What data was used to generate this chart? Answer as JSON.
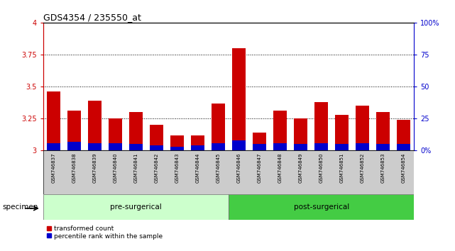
{
  "title": "GDS4354 / 235550_at",
  "samples": [
    "GSM746837",
    "GSM746838",
    "GSM746839",
    "GSM746840",
    "GSM746841",
    "GSM746842",
    "GSM746843",
    "GSM746844",
    "GSM746845",
    "GSM746846",
    "GSM746847",
    "GSM746848",
    "GSM746849",
    "GSM746850",
    "GSM746851",
    "GSM746852",
    "GSM746853",
    "GSM746854"
  ],
  "transformed_count": [
    3.46,
    3.31,
    3.39,
    3.25,
    3.3,
    3.2,
    3.12,
    3.12,
    3.37,
    3.8,
    3.14,
    3.31,
    3.25,
    3.38,
    3.28,
    3.35,
    3.3,
    3.24
  ],
  "percentile_rank": [
    0.06,
    0.07,
    0.06,
    0.06,
    0.05,
    0.04,
    0.03,
    0.04,
    0.06,
    0.08,
    0.05,
    0.06,
    0.05,
    0.06,
    0.05,
    0.06,
    0.05,
    0.05
  ],
  "bar_bottom": 3.0,
  "ylim": [
    3.0,
    4.0
  ],
  "yticks_left": [
    3.0,
    3.25,
    3.5,
    3.75,
    4.0
  ],
  "yticks_right": [
    0,
    25,
    50,
    75,
    100
  ],
  "ytick_labels_left": [
    "3",
    "3.25",
    "3.5",
    "3.75",
    "4"
  ],
  "ytick_labels_right": [
    "0%",
    "25",
    "50",
    "75",
    "100%"
  ],
  "pre_surgical_count": 9,
  "post_surgical_count": 9,
  "pre_surgical_label": "pre-surgerical",
  "post_surgical_label": "post-surgerical",
  "specimen_label": "specimen",
  "legend_red_label": "transformed count",
  "legend_blue_label": "percentile rank within the sample",
  "bar_color_red": "#cc0000",
  "bar_color_blue": "#0000cc",
  "pre_surgical_bg": "#ccffcc",
  "post_surgical_bg": "#44cc44",
  "sample_area_bg": "#cccccc",
  "grid_color": "#000000"
}
